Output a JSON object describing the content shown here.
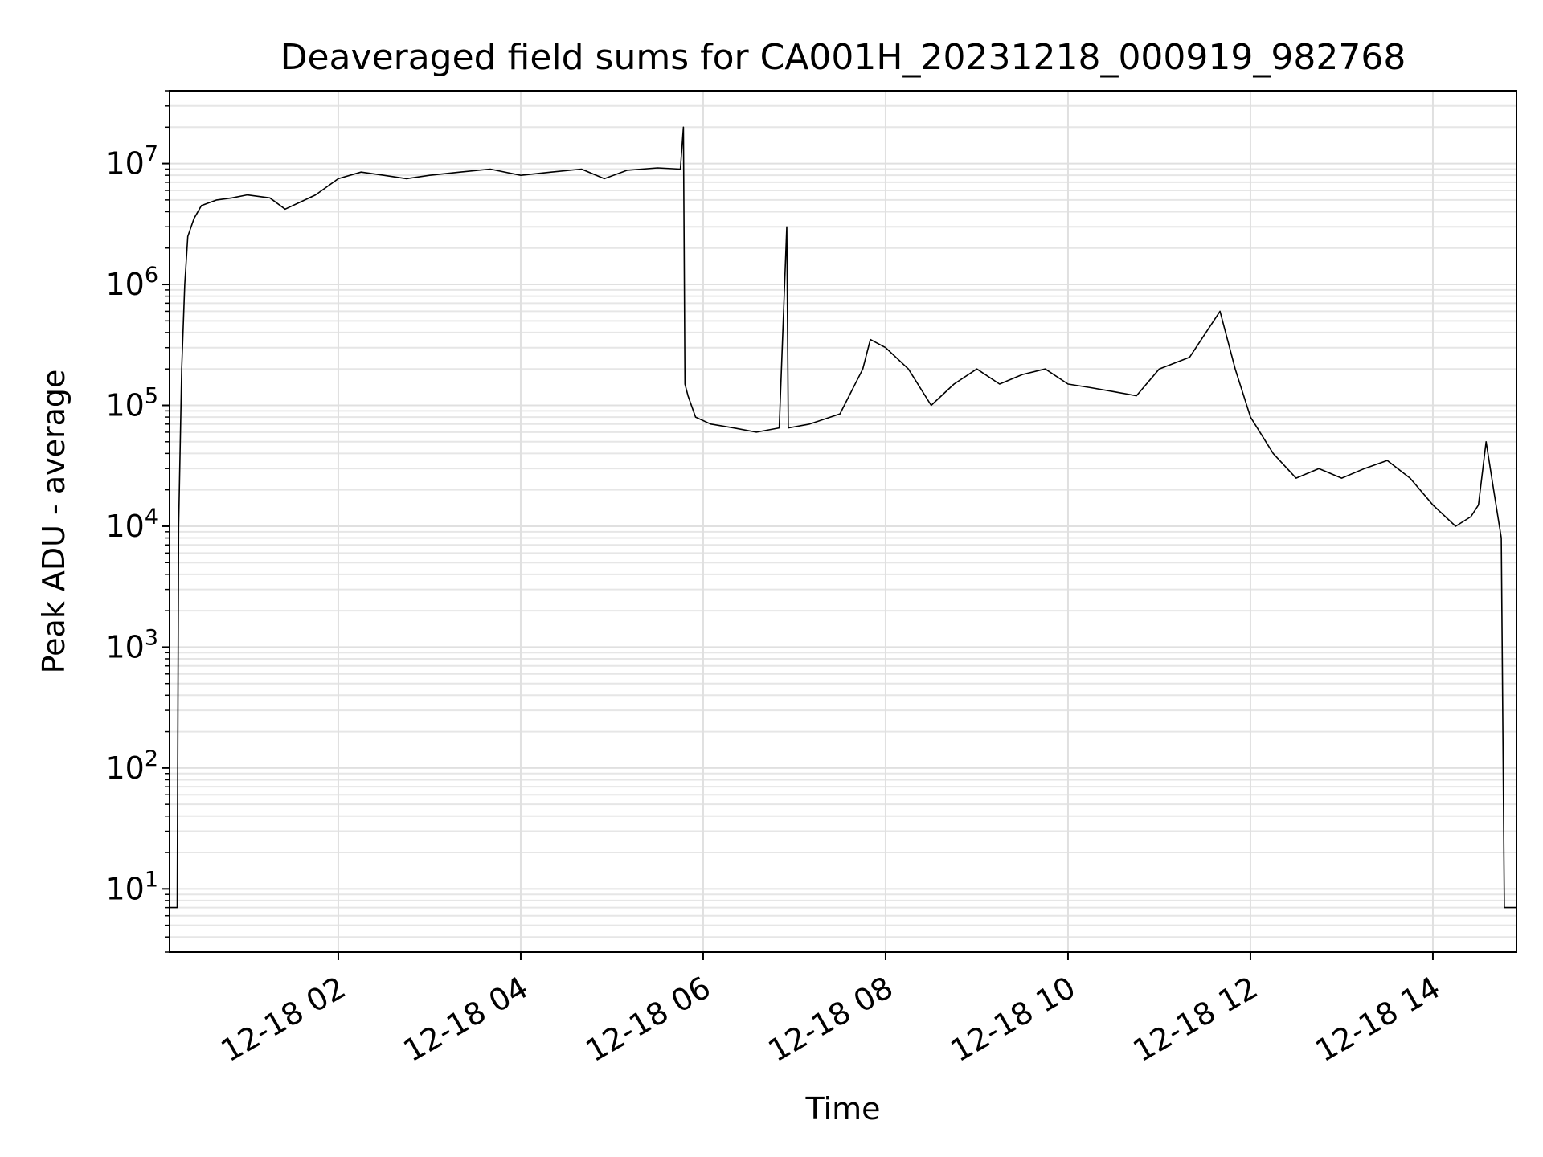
{
  "chart_data": {
    "type": "line",
    "title": "Deaveraged field sums for CA001H_20231218_000919_982768",
    "xlabel": "Time",
    "ylabel": "Peak ADU - average",
    "y_scale": "log",
    "grid": true,
    "x_range": [
      "2023-12-18 00:09",
      "2023-12-18 14:55"
    ],
    "ylim": [
      3,
      40000000
    ],
    "x_ticks": [
      "2023-12-18 02:00",
      "2023-12-18 04:00",
      "2023-12-18 06:00",
      "2023-12-18 08:00",
      "2023-12-18 10:00",
      "2023-12-18 12:00",
      "2023-12-18 14:00"
    ],
    "x_tick_labels": [
      "12-18 02",
      "12-18 04",
      "12-18 06",
      "12-18 08",
      "12-18 10",
      "12-18 12",
      "12-18 14"
    ],
    "y_ticks": [
      10,
      100,
      1000,
      10000,
      100000,
      1000000,
      10000000
    ],
    "y_tick_labels": [
      {
        "base": "10",
        "exp": "1"
      },
      {
        "base": "10",
        "exp": "2"
      },
      {
        "base": "10",
        "exp": "3"
      },
      {
        "base": "10",
        "exp": "4"
      },
      {
        "base": "10",
        "exp": "5"
      },
      {
        "base": "10",
        "exp": "6"
      },
      {
        "base": "10",
        "exp": "7"
      }
    ],
    "series": [
      {
        "color": "#000000",
        "points": [
          [
            "2023-12-18 00:09",
            7
          ],
          [
            "2023-12-18 00:14",
            7
          ],
          [
            "2023-12-18 00:15",
            10000
          ],
          [
            "2023-12-18 00:17",
            200000
          ],
          [
            "2023-12-18 00:19",
            1000000
          ],
          [
            "2023-12-18 00:21",
            2500000
          ],
          [
            "2023-12-18 00:25",
            3500000
          ],
          [
            "2023-12-18 00:30",
            4500000
          ],
          [
            "2023-12-18 00:40",
            5000000
          ],
          [
            "2023-12-18 00:50",
            5200000
          ],
          [
            "2023-12-18 01:00",
            5500000
          ],
          [
            "2023-12-18 01:15",
            5200000
          ],
          [
            "2023-12-18 01:25",
            4200000
          ],
          [
            "2023-12-18 01:35",
            4800000
          ],
          [
            "2023-12-18 01:45",
            5500000
          ],
          [
            "2023-12-18 02:00",
            7500000
          ],
          [
            "2023-12-18 02:15",
            8500000
          ],
          [
            "2023-12-18 02:30",
            8000000
          ],
          [
            "2023-12-18 02:45",
            7500000
          ],
          [
            "2023-12-18 03:00",
            8000000
          ],
          [
            "2023-12-18 03:20",
            8500000
          ],
          [
            "2023-12-18 03:40",
            9000000
          ],
          [
            "2023-12-18 04:00",
            8000000
          ],
          [
            "2023-12-18 04:20",
            8500000
          ],
          [
            "2023-12-18 04:40",
            9000000
          ],
          [
            "2023-12-18 04:55",
            7500000
          ],
          [
            "2023-12-18 05:10",
            8800000
          ],
          [
            "2023-12-18 05:30",
            9200000
          ],
          [
            "2023-12-18 05:45",
            9000000
          ],
          [
            "2023-12-18 05:47",
            20000000
          ],
          [
            "2023-12-18 05:48",
            150000
          ],
          [
            "2023-12-18 05:50",
            120000
          ],
          [
            "2023-12-18 05:55",
            80000
          ],
          [
            "2023-12-18 06:05",
            70000
          ],
          [
            "2023-12-18 06:20",
            65000
          ],
          [
            "2023-12-18 06:35",
            60000
          ],
          [
            "2023-12-18 06:50",
            65000
          ],
          [
            "2023-12-18 06:55",
            3000000
          ],
          [
            "2023-12-18 06:56",
            65000
          ],
          [
            "2023-12-18 07:10",
            70000
          ],
          [
            "2023-12-18 07:30",
            85000
          ],
          [
            "2023-12-18 07:45",
            200000
          ],
          [
            "2023-12-18 07:50",
            350000
          ],
          [
            "2023-12-18 08:00",
            300000
          ],
          [
            "2023-12-18 08:15",
            200000
          ],
          [
            "2023-12-18 08:30",
            100000
          ],
          [
            "2023-12-18 08:45",
            150000
          ],
          [
            "2023-12-18 09:00",
            200000
          ],
          [
            "2023-12-18 09:15",
            150000
          ],
          [
            "2023-12-18 09:30",
            180000
          ],
          [
            "2023-12-18 09:45",
            200000
          ],
          [
            "2023-12-18 10:00",
            150000
          ],
          [
            "2023-12-18 10:15",
            140000
          ],
          [
            "2023-12-18 10:30",
            130000
          ],
          [
            "2023-12-18 10:45",
            120000
          ],
          [
            "2023-12-18 11:00",
            200000
          ],
          [
            "2023-12-18 11:20",
            250000
          ],
          [
            "2023-12-18 11:40",
            600000
          ],
          [
            "2023-12-18 11:50",
            200000
          ],
          [
            "2023-12-18 12:00",
            80000
          ],
          [
            "2023-12-18 12:15",
            40000
          ],
          [
            "2023-12-18 12:30",
            25000
          ],
          [
            "2023-12-18 12:45",
            30000
          ],
          [
            "2023-12-18 13:00",
            25000
          ],
          [
            "2023-12-18 13:15",
            30000
          ],
          [
            "2023-12-18 13:30",
            35000
          ],
          [
            "2023-12-18 13:45",
            25000
          ],
          [
            "2023-12-18 14:00",
            15000
          ],
          [
            "2023-12-18 14:15",
            10000
          ],
          [
            "2023-12-18 14:25",
            12000
          ],
          [
            "2023-12-18 14:30",
            15000
          ],
          [
            "2023-12-18 14:35",
            50000
          ],
          [
            "2023-12-18 14:40",
            20000
          ],
          [
            "2023-12-18 14:45",
            8000
          ],
          [
            "2023-12-18 14:47",
            7
          ],
          [
            "2023-12-18 14:55",
            7
          ]
        ]
      }
    ]
  }
}
